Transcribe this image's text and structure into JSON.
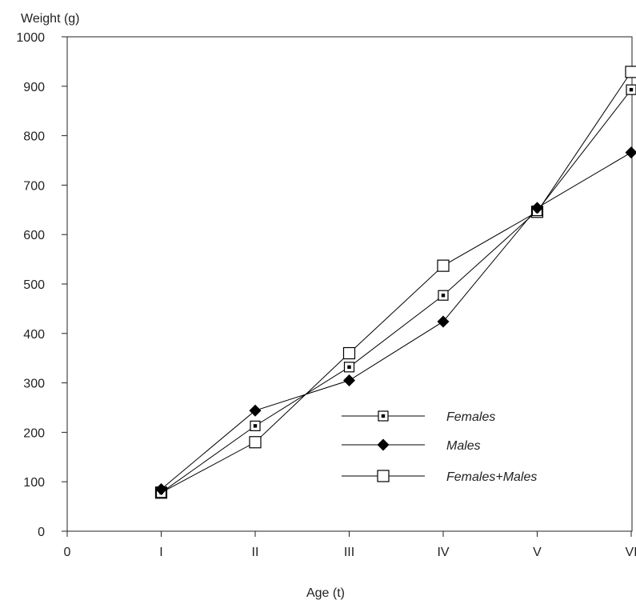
{
  "chart_data": {
    "type": "line",
    "ylabel": "Weight (g)",
    "xlabel": "Age (t)",
    "categories": [
      "0",
      "I",
      "II",
      "III",
      "IV",
      "V",
      "VI"
    ],
    "ylim": [
      0,
      1000
    ],
    "yticks": [
      0,
      100,
      200,
      300,
      400,
      500,
      600,
      700,
      800,
      900,
      1000
    ],
    "grid": false,
    "legend_position": "lower-right",
    "series": [
      {
        "name": "Females",
        "marker": "dotted-square-icon",
        "x": [
          "I",
          "II",
          "III",
          "IV",
          "V",
          "VI"
        ],
        "values": [
          78,
          213,
          332,
          477,
          648,
          893
        ]
      },
      {
        "name": "Males",
        "marker": "diamond-icon",
        "x": [
          "I",
          "II",
          "III",
          "IV",
          "V",
          "VI"
        ],
        "values": [
          85,
          244,
          305,
          424,
          654,
          766
        ]
      },
      {
        "name": "Females+Males",
        "marker": "open-square-icon",
        "x": [
          "I",
          "II",
          "III",
          "IV",
          "V",
          "VI"
        ],
        "values": [
          78,
          180,
          360,
          537,
          646,
          929
        ]
      }
    ]
  }
}
